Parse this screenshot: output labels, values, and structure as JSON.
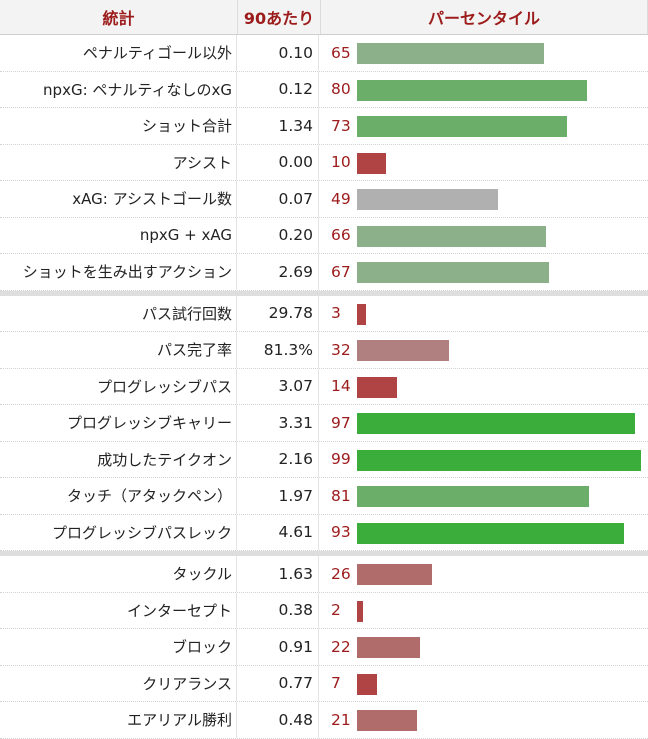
{
  "header": {
    "stat": "統計",
    "per90": "90あたり",
    "percentile": "パーセンタイル"
  },
  "chart_data": {
    "type": "bar",
    "groups": [
      [
        {
          "label": "ペナルティゴール以外",
          "per90": "0.10",
          "percentile": 65,
          "color": "#8cb08a"
        },
        {
          "label": "npxG: ペナルティなしのxG",
          "per90": "0.12",
          "percentile": 80,
          "color": "#6bae69"
        },
        {
          "label": "ショット合計",
          "per90": "1.34",
          "percentile": 73,
          "color": "#6bae69"
        },
        {
          "label": "アシスト",
          "per90": "0.00",
          "percentile": 10,
          "color": "#b04343"
        },
        {
          "label": "xAG: アシストゴール数",
          "per90": "0.07",
          "percentile": 49,
          "color": "#b0b0b0"
        },
        {
          "label": "npxG + xAG",
          "per90": "0.20",
          "percentile": 66,
          "color": "#8cb08a"
        },
        {
          "label": "ショットを生み出すアクション",
          "per90": "2.69",
          "percentile": 67,
          "color": "#8cb08a"
        }
      ],
      [
        {
          "label": "パス試行回数",
          "per90": "29.78",
          "percentile": 3,
          "color": "#b04343"
        },
        {
          "label": "パス完了率",
          "per90": "81.3%",
          "percentile": 32,
          "color": "#b08080"
        },
        {
          "label": "プログレッシブパス",
          "per90": "3.07",
          "percentile": 14,
          "color": "#b04343"
        },
        {
          "label": "プログレッシブキャリー",
          "per90": "3.31",
          "percentile": 97,
          "color": "#3aad3a"
        },
        {
          "label": "成功したテイクオン",
          "per90": "2.16",
          "percentile": 99,
          "color": "#3aad3a"
        },
        {
          "label": "タッチ（アタックペン）",
          "per90": "1.97",
          "percentile": 81,
          "color": "#6bae69"
        },
        {
          "label": "プログレッシブパスレック",
          "per90": "4.61",
          "percentile": 93,
          "color": "#3aad3a"
        }
      ],
      [
        {
          "label": "タックル",
          "per90": "1.63",
          "percentile": 26,
          "color": "#b06b6b"
        },
        {
          "label": "インターセプト",
          "per90": "0.38",
          "percentile": 2,
          "color": "#b04343"
        },
        {
          "label": "ブロック",
          "per90": "0.91",
          "percentile": 22,
          "color": "#b06b6b"
        },
        {
          "label": "クリアランス",
          "per90": "0.77",
          "percentile": 7,
          "color": "#b04343"
        },
        {
          "label": "エアリアル勝利",
          "per90": "0.48",
          "percentile": 21,
          "color": "#b06b6b"
        }
      ]
    ],
    "xlim": [
      0,
      100
    ]
  }
}
